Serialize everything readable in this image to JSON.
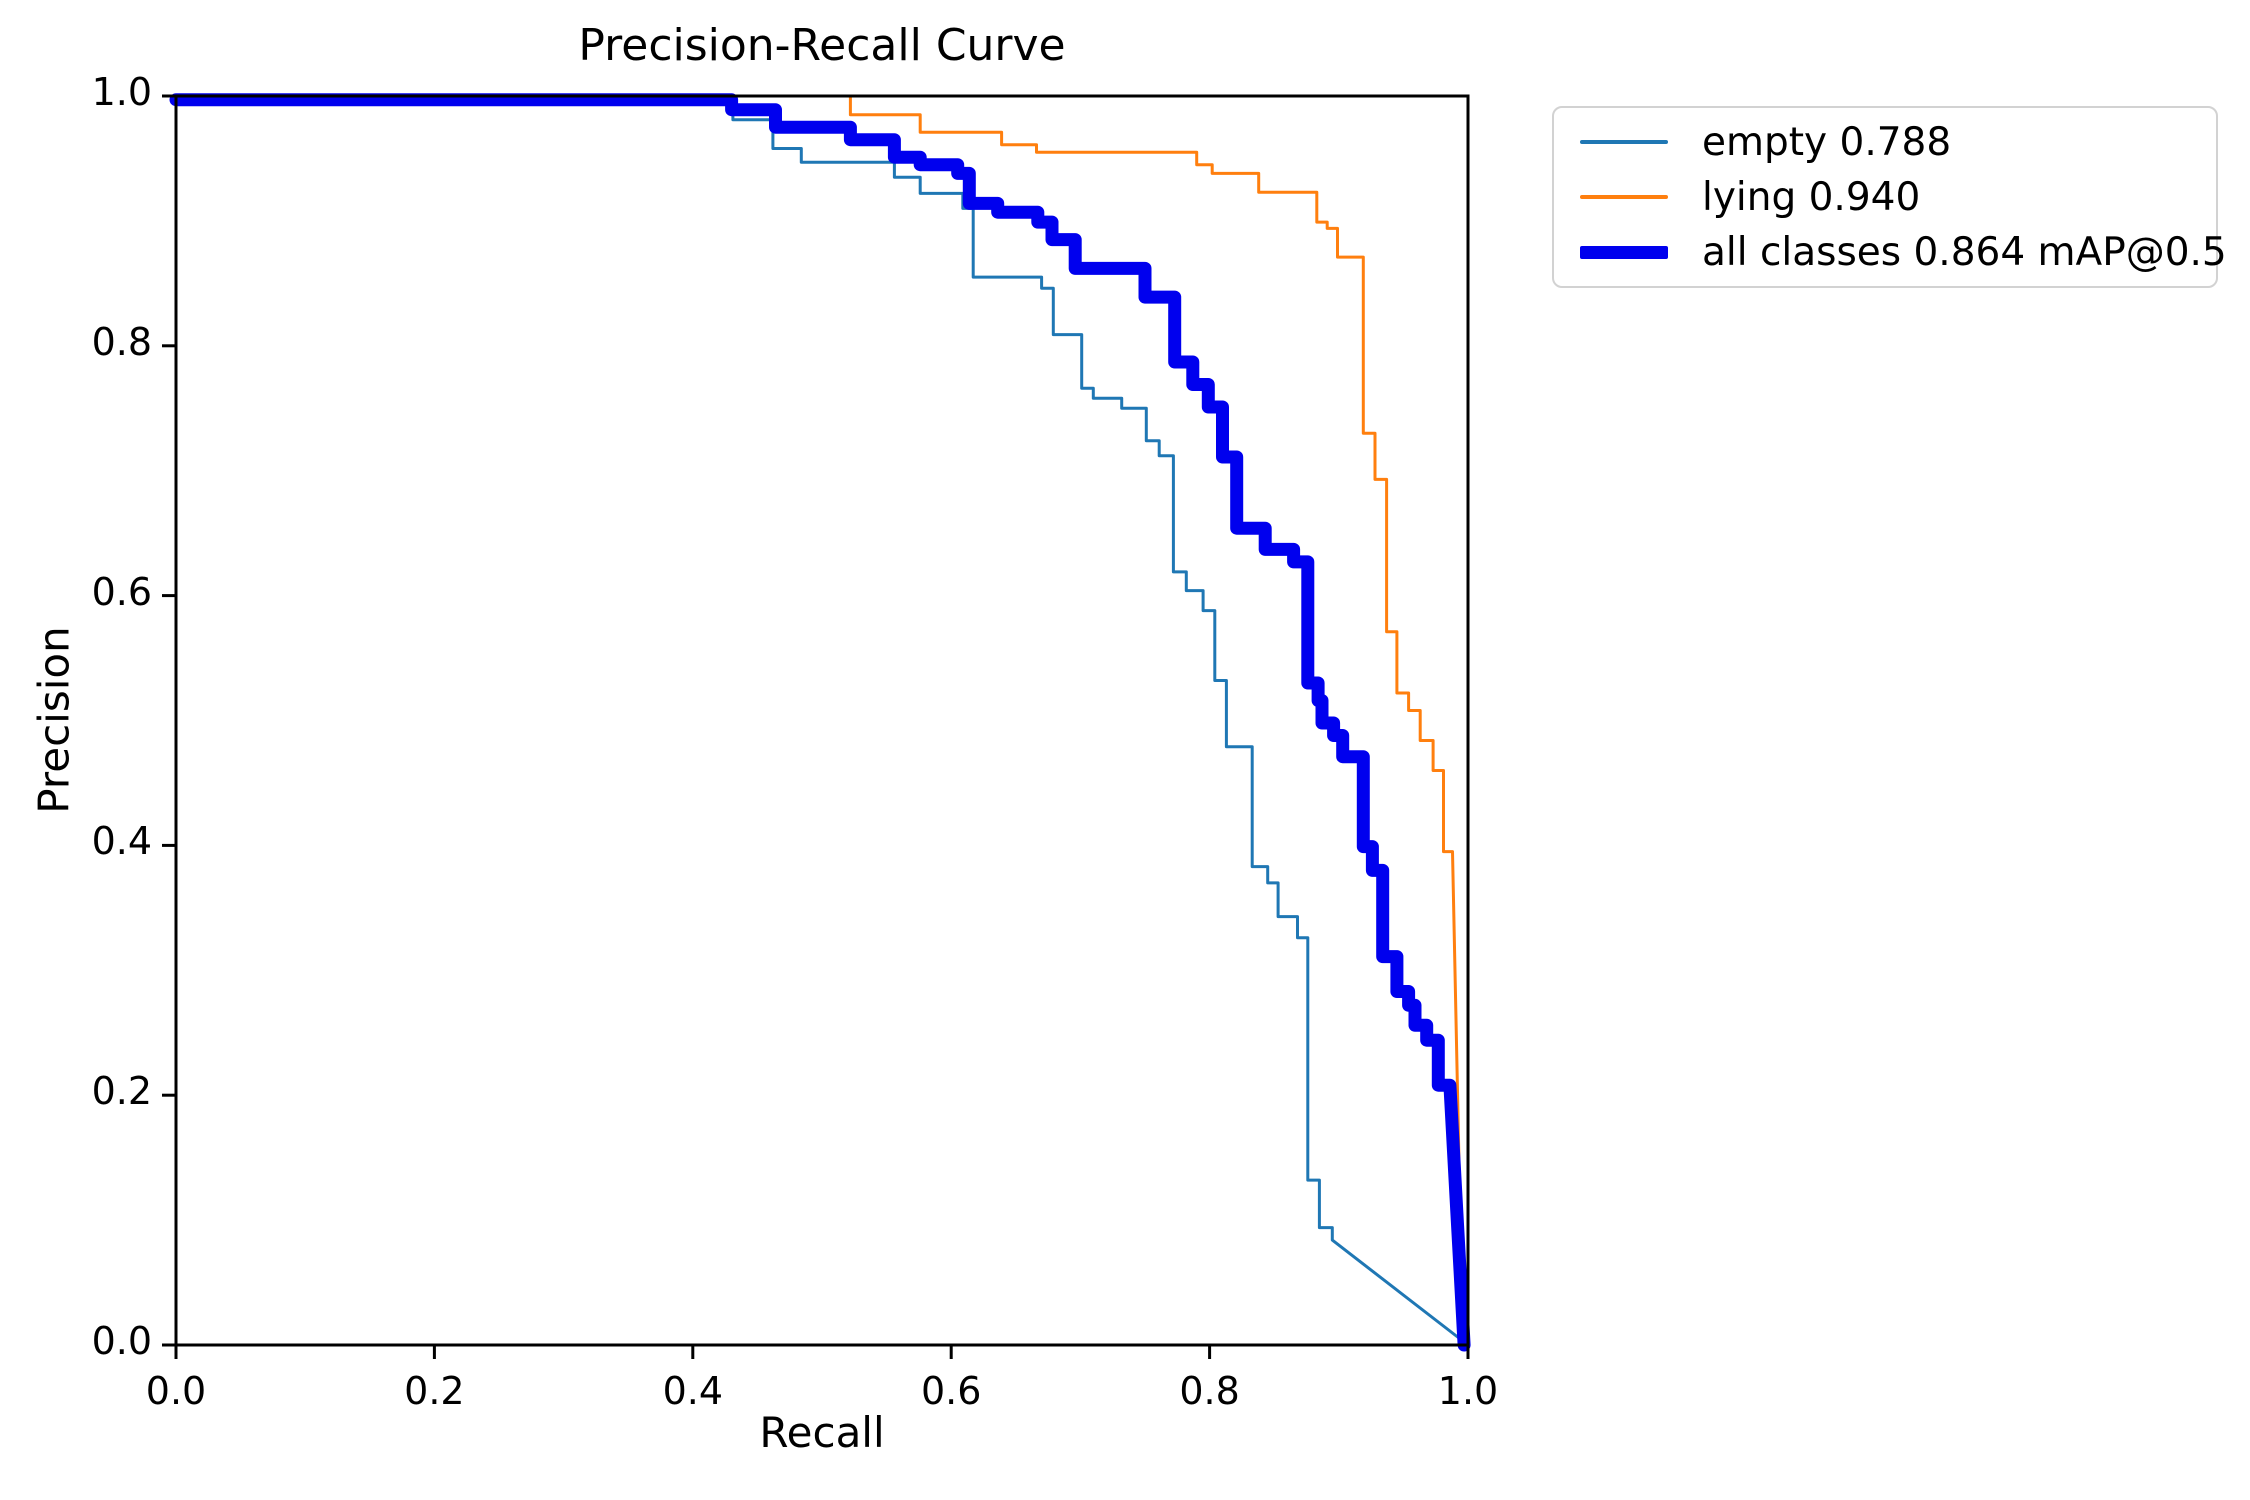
{
  "chart_data": {
    "type": "line",
    "curve_style": "precision-recall step curves",
    "title": "Precision-Recall Curve",
    "xlabel": "Recall",
    "ylabel": "Precision",
    "xlim": [
      0.0,
      1.0
    ],
    "ylim": [
      0.0,
      1.0
    ],
    "x_ticks": [
      "0.0",
      "0.2",
      "0.4",
      "0.6",
      "0.8",
      "1.0"
    ],
    "y_ticks": [
      "0.0",
      "0.2",
      "0.4",
      "0.6",
      "0.8",
      "1.0"
    ],
    "grid": false,
    "legend_position": "outside-upper-right",
    "axis_color": "#000000",
    "background_color": "#ffffff",
    "series": [
      {
        "name": "empty 0.788",
        "class": "empty",
        "ap": 0.788,
        "color": "#1f77b4",
        "thick": false,
        "points": [
          [
            0.0,
            0.997
          ],
          [
            0.431,
            0.997
          ],
          [
            0.431,
            0.981
          ],
          [
            0.462,
            0.981
          ],
          [
            0.462,
            0.958
          ],
          [
            0.484,
            0.958
          ],
          [
            0.484,
            0.947
          ],
          [
            0.556,
            0.947
          ],
          [
            0.556,
            0.935
          ],
          [
            0.576,
            0.935
          ],
          [
            0.576,
            0.922
          ],
          [
            0.609,
            0.922
          ],
          [
            0.609,
            0.91
          ],
          [
            0.617,
            0.91
          ],
          [
            0.617,
            0.855
          ],
          [
            0.67,
            0.855
          ],
          [
            0.67,
            0.846
          ],
          [
            0.679,
            0.846
          ],
          [
            0.679,
            0.809
          ],
          [
            0.701,
            0.809
          ],
          [
            0.701,
            0.766
          ],
          [
            0.71,
            0.766
          ],
          [
            0.71,
            0.758
          ],
          [
            0.732,
            0.758
          ],
          [
            0.732,
            0.75
          ],
          [
            0.751,
            0.75
          ],
          [
            0.751,
            0.724
          ],
          [
            0.761,
            0.724
          ],
          [
            0.761,
            0.712
          ],
          [
            0.772,
            0.712
          ],
          [
            0.772,
            0.619
          ],
          [
            0.782,
            0.619
          ],
          [
            0.782,
            0.604
          ],
          [
            0.795,
            0.604
          ],
          [
            0.795,
            0.588
          ],
          [
            0.804,
            0.588
          ],
          [
            0.804,
            0.532
          ],
          [
            0.813,
            0.532
          ],
          [
            0.813,
            0.479
          ],
          [
            0.833,
            0.479
          ],
          [
            0.833,
            0.383
          ],
          [
            0.845,
            0.383
          ],
          [
            0.845,
            0.37
          ],
          [
            0.853,
            0.37
          ],
          [
            0.853,
            0.343
          ],
          [
            0.868,
            0.343
          ],
          [
            0.868,
            0.326
          ],
          [
            0.876,
            0.326
          ],
          [
            0.876,
            0.132
          ],
          [
            0.885,
            0.132
          ],
          [
            0.885,
            0.094
          ],
          [
            0.895,
            0.094
          ],
          [
            0.895,
            0.084
          ],
          [
            1.0,
            0.0
          ]
        ]
      },
      {
        "name": "lying 0.940",
        "class": "lying",
        "ap": 0.94,
        "color": "#ff7f0e",
        "thick": false,
        "points": [
          [
            0.0,
            1.0
          ],
          [
            0.522,
            1.0
          ],
          [
            0.522,
            0.985
          ],
          [
            0.576,
            0.985
          ],
          [
            0.576,
            0.971
          ],
          [
            0.639,
            0.971
          ],
          [
            0.639,
            0.961
          ],
          [
            0.666,
            0.961
          ],
          [
            0.666,
            0.955
          ],
          [
            0.79,
            0.955
          ],
          [
            0.79,
            0.945
          ],
          [
            0.802,
            0.945
          ],
          [
            0.802,
            0.938
          ],
          [
            0.838,
            0.938
          ],
          [
            0.838,
            0.923
          ],
          [
            0.883,
            0.923
          ],
          [
            0.883,
            0.899
          ],
          [
            0.891,
            0.899
          ],
          [
            0.891,
            0.894
          ],
          [
            0.899,
            0.894
          ],
          [
            0.899,
            0.871
          ],
          [
            0.919,
            0.871
          ],
          [
            0.919,
            0.73
          ],
          [
            0.928,
            0.73
          ],
          [
            0.928,
            0.693
          ],
          [
            0.937,
            0.693
          ],
          [
            0.937,
            0.571
          ],
          [
            0.945,
            0.571
          ],
          [
            0.945,
            0.522
          ],
          [
            0.954,
            0.522
          ],
          [
            0.954,
            0.508
          ],
          [
            0.963,
            0.508
          ],
          [
            0.963,
            0.484
          ],
          [
            0.973,
            0.484
          ],
          [
            0.973,
            0.46
          ],
          [
            0.981,
            0.46
          ],
          [
            0.981,
            0.395
          ],
          [
            0.988,
            0.395
          ],
          [
            0.996,
            0.0
          ]
        ]
      },
      {
        "name": "all classes 0.864 mAP@0.5",
        "class": "all classes",
        "ap": 0.864,
        "map_at_05": 0.864,
        "color": "#0000ee",
        "thick": true,
        "points": [
          [
            0.0,
            0.997
          ],
          [
            0.43,
            0.997
          ],
          [
            0.43,
            0.989
          ],
          [
            0.464,
            0.989
          ],
          [
            0.464,
            0.975
          ],
          [
            0.522,
            0.975
          ],
          [
            0.522,
            0.965
          ],
          [
            0.556,
            0.965
          ],
          [
            0.556,
            0.951
          ],
          [
            0.576,
            0.951
          ],
          [
            0.576,
            0.945
          ],
          [
            0.605,
            0.945
          ],
          [
            0.605,
            0.938
          ],
          [
            0.614,
            0.938
          ],
          [
            0.614,
            0.914
          ],
          [
            0.636,
            0.914
          ],
          [
            0.636,
            0.907
          ],
          [
            0.667,
            0.907
          ],
          [
            0.667,
            0.899
          ],
          [
            0.678,
            0.899
          ],
          [
            0.678,
            0.885
          ],
          [
            0.696,
            0.885
          ],
          [
            0.696,
            0.862
          ],
          [
            0.75,
            0.862
          ],
          [
            0.75,
            0.839
          ],
          [
            0.773,
            0.839
          ],
          [
            0.773,
            0.787
          ],
          [
            0.787,
            0.787
          ],
          [
            0.787,
            0.769
          ],
          [
            0.799,
            0.769
          ],
          [
            0.799,
            0.751
          ],
          [
            0.81,
            0.751
          ],
          [
            0.81,
            0.711
          ],
          [
            0.821,
            0.711
          ],
          [
            0.821,
            0.654
          ],
          [
            0.843,
            0.654
          ],
          [
            0.843,
            0.637
          ],
          [
            0.865,
            0.637
          ],
          [
            0.865,
            0.627
          ],
          [
            0.876,
            0.627
          ],
          [
            0.876,
            0.53
          ],
          [
            0.884,
            0.53
          ],
          [
            0.884,
            0.516
          ],
          [
            0.887,
            0.516
          ],
          [
            0.887,
            0.498
          ],
          [
            0.896,
            0.498
          ],
          [
            0.896,
            0.488
          ],
          [
            0.903,
            0.488
          ],
          [
            0.903,
            0.471
          ],
          [
            0.919,
            0.471
          ],
          [
            0.919,
            0.399
          ],
          [
            0.926,
            0.399
          ],
          [
            0.926,
            0.38
          ],
          [
            0.934,
            0.38
          ],
          [
            0.934,
            0.311
          ],
          [
            0.945,
            0.311
          ],
          [
            0.945,
            0.283
          ],
          [
            0.954,
            0.283
          ],
          [
            0.954,
            0.272
          ],
          [
            0.959,
            0.272
          ],
          [
            0.959,
            0.256
          ],
          [
            0.968,
            0.256
          ],
          [
            0.968,
            0.244
          ],
          [
            0.977,
            0.244
          ],
          [
            0.977,
            0.208
          ],
          [
            0.986,
            0.208
          ],
          [
            0.997,
            0.0
          ]
        ]
      }
    ]
  }
}
